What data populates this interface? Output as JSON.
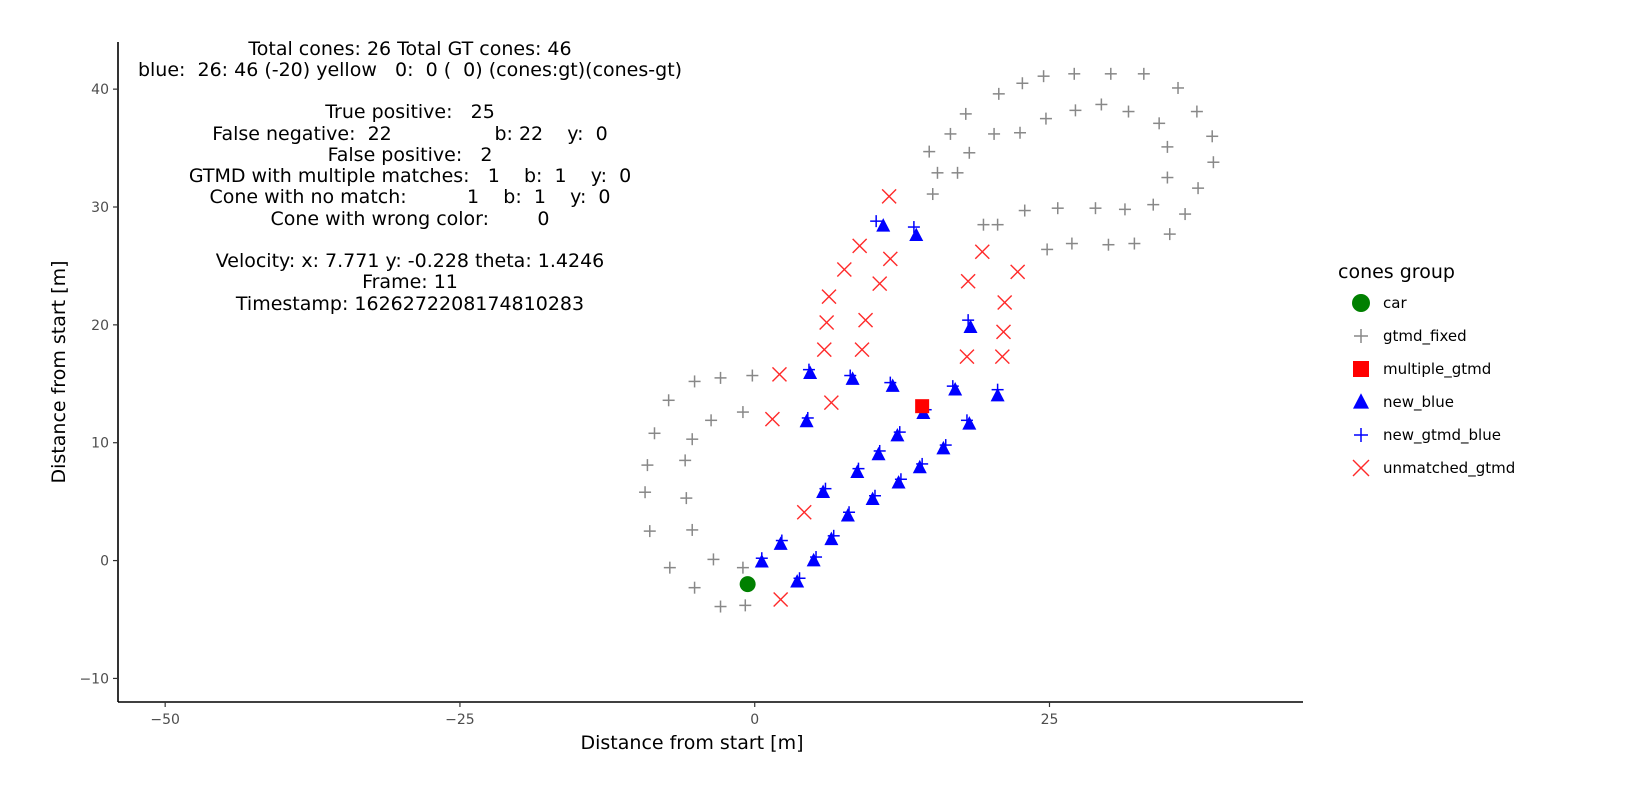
{
  "info": {
    "line1": "Total cones: 26 Total GT cones: 46",
    "line2": "blue:  26: 46 (-20) yellow   0:  0 (  0) (cones:gt)(cones-gt)",
    "true_positive": "True positive:   25",
    "false_negative": "False negative:  22                 b: 22    y:  0",
    "false_positive": "False positive:   2",
    "gtmd_multiple": "GTMD with multiple matches:   1    b:  1    y:  0",
    "no_match": "Cone with no match:          1    b:  1    y:  0",
    "wrong_color": "Cone with wrong color:        0",
    "velocity": "Velocity: x: 7.771 y: -0.228 theta: 1.4246",
    "frame": "Frame: 11",
    "timestamp": "Timestamp: 1626272208174810283"
  },
  "colors": {
    "car": "#008000",
    "gtmd_fixed": "#888888",
    "multiple_gtmd": "#ff0000",
    "new_blue": "#0000ff",
    "new_gtmd_blue": "#0000ff",
    "unmatched_gtmd": "#ff2a2a"
  },
  "chart_data": {
    "type": "scatter",
    "xlabel": "Distance from start [m]",
    "ylabel": "Distance from start [m]",
    "xlim": [
      -54,
      46.5
    ],
    "ylim": [
      -12,
      44
    ],
    "xticks": [
      -50,
      -25,
      0,
      25
    ],
    "yticks": [
      -10,
      0,
      10,
      20,
      30,
      40
    ],
    "legend_title": "cones group",
    "legend_position": "right",
    "series": [
      {
        "name": "car",
        "marker": "circle",
        "points": [
          [
            -0.6,
            -2.0
          ]
        ]
      },
      {
        "name": "gtmd_fixed",
        "marker": "plus",
        "points": [
          [
            -0.8,
            -3.8
          ],
          [
            -2.9,
            -3.9
          ],
          [
            -5.1,
            -2.3
          ],
          [
            -7.2,
            -0.6
          ],
          [
            -3.5,
            0.1
          ],
          [
            -1.0,
            -0.6
          ],
          [
            -8.9,
            2.5
          ],
          [
            -5.3,
            2.6
          ],
          [
            -5.8,
            5.3
          ],
          [
            -9.3,
            5.8
          ],
          [
            -5.9,
            8.5
          ],
          [
            -9.1,
            8.1
          ],
          [
            -8.5,
            10.8
          ],
          [
            -5.3,
            10.3
          ],
          [
            -3.7,
            11.9
          ],
          [
            -1.0,
            12.6
          ],
          [
            -7.3,
            13.6
          ],
          [
            -5.1,
            15.2
          ],
          [
            -2.9,
            15.5
          ],
          [
            -0.2,
            15.7
          ],
          [
            15.1,
            31.1
          ],
          [
            14.8,
            34.7
          ],
          [
            17.2,
            32.9
          ],
          [
            15.5,
            32.9
          ],
          [
            18.2,
            34.6
          ],
          [
            19.4,
            28.5
          ],
          [
            20.3,
            36.2
          ],
          [
            16.6,
            36.2
          ],
          [
            17.9,
            37.9
          ],
          [
            20.7,
            39.6
          ],
          [
            22.7,
            40.5
          ],
          [
            24.5,
            41.1
          ],
          [
            27.1,
            41.3
          ],
          [
            30.2,
            41.3
          ],
          [
            33.0,
            41.3
          ],
          [
            20.6,
            28.5
          ],
          [
            22.9,
            29.7
          ],
          [
            24.8,
            26.4
          ],
          [
            25.7,
            29.9
          ],
          [
            26.9,
            26.9
          ],
          [
            28.9,
            29.9
          ],
          [
            30.0,
            26.8
          ],
          [
            31.4,
            29.8
          ],
          [
            32.2,
            26.9
          ],
          [
            33.8,
            30.2
          ],
          [
            35.2,
            27.7
          ],
          [
            36.5,
            29.4
          ],
          [
            37.6,
            31.6
          ],
          [
            38.9,
            33.8
          ],
          [
            38.8,
            36.0
          ],
          [
            37.5,
            38.1
          ],
          [
            35.9,
            40.1
          ],
          [
            35.0,
            35.1
          ],
          [
            35.0,
            32.5
          ],
          [
            34.3,
            37.1
          ],
          [
            31.7,
            38.1
          ],
          [
            29.4,
            38.7
          ],
          [
            27.2,
            38.2
          ],
          [
            24.7,
            37.5
          ],
          [
            22.5,
            36.3
          ]
        ]
      },
      {
        "name": "multiple_gtmd",
        "marker": "square",
        "points": [
          [
            14.2,
            13.1
          ]
        ]
      },
      {
        "name": "new_blue",
        "marker": "triangle",
        "points": [
          [
            0.6,
            -0.1
          ],
          [
            2.2,
            1.4
          ],
          [
            3.6,
            -1.8
          ],
          [
            4.4,
            11.8
          ],
          [
            4.7,
            15.9
          ],
          [
            5.0,
            0.0
          ],
          [
            5.8,
            5.8
          ],
          [
            6.5,
            1.8
          ],
          [
            7.9,
            3.8
          ],
          [
            8.3,
            15.4
          ],
          [
            8.7,
            7.5
          ],
          [
            10.0,
            5.2
          ],
          [
            10.5,
            9.0
          ],
          [
            10.9,
            28.4
          ],
          [
            11.7,
            14.8
          ],
          [
            12.1,
            10.6
          ],
          [
            12.2,
            6.6
          ],
          [
            13.7,
            27.6
          ],
          [
            14.0,
            7.9
          ],
          [
            14.3,
            12.5
          ],
          [
            16.0,
            9.5
          ],
          [
            17.0,
            14.5
          ],
          [
            18.2,
            11.6
          ],
          [
            18.3,
            19.8
          ],
          [
            20.6,
            14.0
          ]
        ]
      },
      {
        "name": "new_gtmd_blue",
        "marker": "plus",
        "points": [
          [
            0.6,
            0.2
          ],
          [
            2.3,
            1.7
          ],
          [
            3.8,
            -1.5
          ],
          [
            4.5,
            12.1
          ],
          [
            4.6,
            16.2
          ],
          [
            5.2,
            0.3
          ],
          [
            6.0,
            6.1
          ],
          [
            6.7,
            2.1
          ],
          [
            8.0,
            4.1
          ],
          [
            8.1,
            15.7
          ],
          [
            8.8,
            7.8
          ],
          [
            10.2,
            5.5
          ],
          [
            10.6,
            9.3
          ],
          [
            10.3,
            28.8
          ],
          [
            11.5,
            15.1
          ],
          [
            12.3,
            10.9
          ],
          [
            12.4,
            6.9
          ],
          [
            13.5,
            28.3
          ],
          [
            14.2,
            8.2
          ],
          [
            14.5,
            12.8
          ],
          [
            16.2,
            9.8
          ],
          [
            16.8,
            14.8
          ],
          [
            18.0,
            11.9
          ],
          [
            18.1,
            20.4
          ],
          [
            20.6,
            14.5
          ]
        ]
      },
      {
        "name": "unmatched_gtmd",
        "marker": "x",
        "points": [
          [
            2.2,
            -3.3
          ],
          [
            4.2,
            4.1
          ],
          [
            1.5,
            12.0
          ],
          [
            2.1,
            15.8
          ],
          [
            6.5,
            13.4
          ],
          [
            5.9,
            17.9
          ],
          [
            6.1,
            20.2
          ],
          [
            6.3,
            22.4
          ],
          [
            7.6,
            24.7
          ],
          [
            8.9,
            26.7
          ],
          [
            11.4,
            30.9
          ],
          [
            11.5,
            25.6
          ],
          [
            10.6,
            23.5
          ],
          [
            9.4,
            20.4
          ],
          [
            9.1,
            17.9
          ],
          [
            18.1,
            23.7
          ],
          [
            19.3,
            26.2
          ],
          [
            22.3,
            24.5
          ],
          [
            21.2,
            21.9
          ],
          [
            21.1,
            19.4
          ],
          [
            21.0,
            17.3
          ],
          [
            18.0,
            17.3
          ]
        ]
      }
    ]
  }
}
